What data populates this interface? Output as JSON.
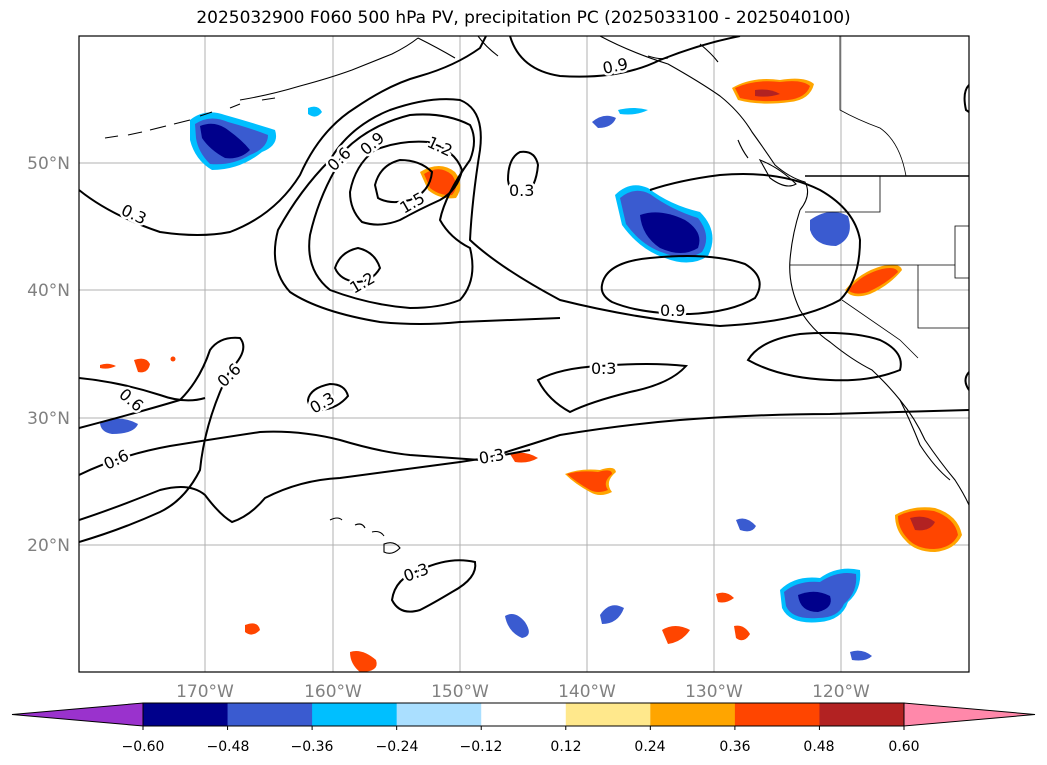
{
  "title": "2025032900 F060 500 hPa PV, precipitation PC (2025033100 - 2025040100)",
  "lat_labels": [
    "50°N",
    "40°N",
    "30°N",
    "20°N"
  ],
  "lon_labels": [
    "170°W",
    "160°W",
    "150°W",
    "140°W",
    "130°W",
    "120°W"
  ],
  "contour_labels": [
    "0.9",
    "0.6",
    "0.9",
    "1.2",
    "1.5",
    "0.3",
    "1.2",
    "0.3",
    "0.9",
    "0.3",
    "0.6",
    "0.6",
    "0.3",
    "0.6",
    "0.3",
    "0.3"
  ],
  "colorbar": {
    "ticks": [
      "−0.60",
      "−0.48",
      "−0.36",
      "−0.24",
      "−0.12",
      "0.12",
      "0.24",
      "0.36",
      "0.48",
      "0.60"
    ],
    "colors": [
      "#9a32cd",
      "#00008b",
      "#3a5bd0",
      "#00bfff",
      "#aadfff",
      "#ffffff",
      "#ffe88c",
      "#ffa500",
      "#ff4500",
      "#b22222",
      "#ff88aa"
    ]
  },
  "colors": {
    "neg_dark": "#00008b",
    "neg_mid": "#3a5bd0",
    "neg_light": "#00bfff",
    "pos_light": "#ffe88c",
    "pos_mid": "#ffa500",
    "pos_strong": "#ff4500",
    "pos_dark": "#b22222",
    "grid": "#b0b0b0",
    "axis_label": "#808080"
  }
}
